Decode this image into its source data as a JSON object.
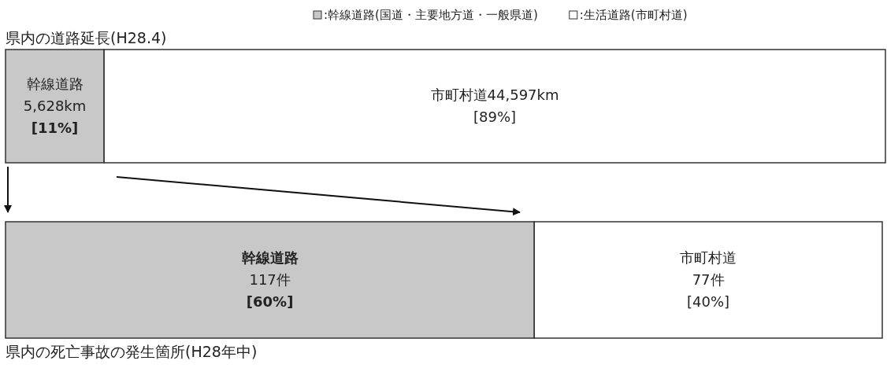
{
  "chart_data": [
    {
      "type": "bar",
      "orientation": "horizontal",
      "stacked": true,
      "title": "県内の道路延長(H28.4)",
      "categories": [
        null
      ],
      "legend": "top right",
      "series": [
        {
          "name": ":幹線道路(国道・主要地方道・一般県道)",
          "color": "#c8c8c8",
          "values": [
            5628
          ],
          "value_labels": [
            "幹線道路\n5,628km\n[11%]"
          ]
        },
        {
          "name": ":生活道路(市町村道)",
          "color": "#ffffff",
          "values": [
            44597
          ],
          "value_labels": [
            "市町村道44,597km\n[89%]"
          ]
        }
      ]
    },
    {
      "type": "bar",
      "orientation": "horizontal",
      "stacked": true,
      "title": "県内の死亡事故の発生箇所(H28年中)",
      "categories": [
        null
      ],
      "series": [
        {
          "color": "#c8c8c8",
          "values": [
            117
          ],
          "value_labels": [
            "幹線道路\n117件\n[60%]"
          ]
        },
        {
          "color": "#ffffff",
          "values": [
            77
          ],
          "value_labels": [
            "市町村道\n77件\n[40%]"
          ]
        }
      ]
    }
  ]
}
